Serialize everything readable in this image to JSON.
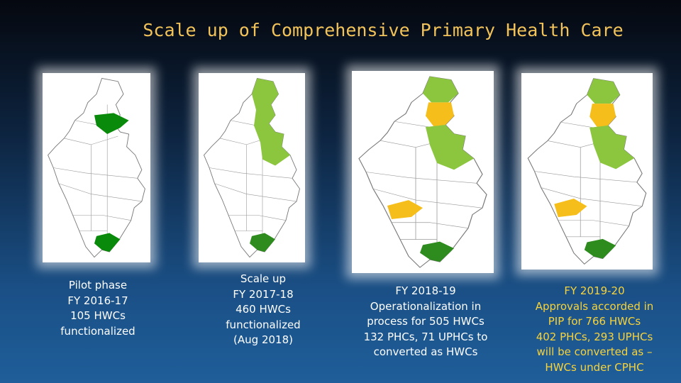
{
  "header": {
    "title": "Scale up of Comprehensive Primary Health Care"
  },
  "panels": [
    {
      "lines": [
        "Pilot phase",
        "FY 2016-17",
        "105 HWCs",
        "functionalized"
      ]
    },
    {
      "lines": [
        "Scale up",
        "FY 2017-18",
        "460 HWCs",
        "functionalized",
        "(Aug 2018)"
      ]
    },
    {
      "lines": [
        "FY 2018-19",
        "Operationalization in",
        "process for 505 HWCs",
        "132 PHCs, 71 UPHCs to",
        "converted as HWCs"
      ]
    },
    {
      "lines": [
        "FY 2019-20",
        "Approvals accorded in",
        "PIP for 766 HWCs",
        "402 PHCs, 293 UPHCs",
        "will be converted as –",
        "HWCs under CPHC"
      ]
    }
  ]
}
